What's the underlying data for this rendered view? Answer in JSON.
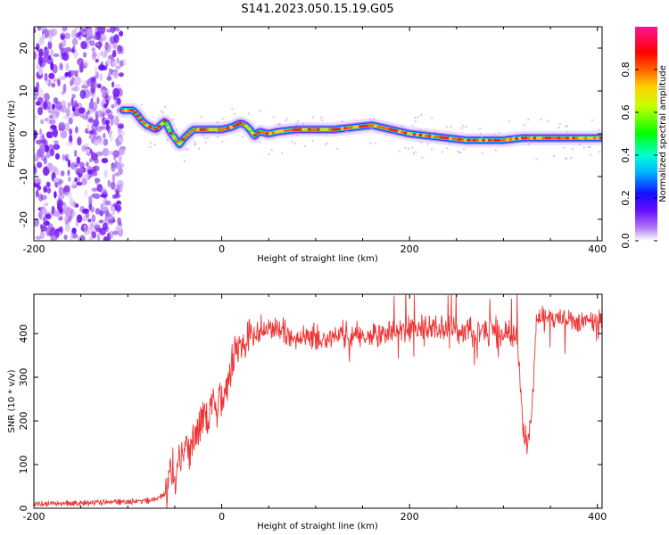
{
  "figure": {
    "title": "S141.2023.050.15.19.G05"
  },
  "chart_data": [
    {
      "type": "heatmap",
      "xlabel": "Height of straight line (km)",
      "ylabel": "Frequency (Hz)",
      "xlim": [
        -200,
        405
      ],
      "ylim": [
        -25,
        25
      ],
      "x_ticks": [
        -200,
        0,
        200,
        400
      ],
      "x_tick_labels": [
        "-200",
        "0",
        "200",
        "400"
      ],
      "y_ticks": [
        -20,
        -10,
        0,
        10,
        20
      ],
      "y_tick_labels": [
        "-20",
        "-10",
        "0",
        "10",
        "20"
      ],
      "noise_region_x": [
        -200,
        -105
      ],
      "ridge": {
        "x": [
          -105,
          -95,
          -90,
          -85,
          -80,
          -75,
          -70,
          -65,
          -60,
          -55,
          -50,
          -45,
          -40,
          -35,
          -30,
          -20,
          -10,
          0,
          10,
          20,
          25,
          30,
          35,
          40,
          50,
          60,
          80,
          100,
          120,
          140,
          160,
          180,
          200,
          220,
          240,
          260,
          280,
          300,
          320,
          340,
          360,
          380,
          405
        ],
        "y": [
          5.5,
          5.5,
          4.5,
          3.0,
          2.0,
          1.5,
          1.0,
          2.0,
          3.0,
          0.5,
          -1.0,
          -2.5,
          -1.0,
          0.0,
          1.0,
          1.0,
          1.0,
          1.0,
          1.5,
          2.5,
          2.0,
          1.0,
          -0.5,
          0.5,
          0.0,
          0.5,
          1.0,
          1.0,
          1.0,
          1.5,
          2.0,
          1.0,
          0.0,
          -0.5,
          -1.0,
          -1.5,
          -1.5,
          -1.5,
          -1.0,
          -1.0,
          -1.0,
          -1.0,
          -1.0
        ]
      },
      "grid": false
    },
    {
      "type": "line",
      "xlabel": "Height of straight line (km)",
      "ylabel": "SNR (10 * v/v)",
      "xlim": [
        -200,
        405
      ],
      "ylim": [
        0,
        490
      ],
      "x_ticks": [
        -200,
        0,
        200,
        400
      ],
      "x_tick_labels": [
        "-200",
        "0",
        "200",
        "400"
      ],
      "y_ticks": [
        0,
        100,
        200,
        300,
        400
      ],
      "y_tick_labels": [
        "0",
        "100",
        "200",
        "300",
        "400"
      ],
      "series": [
        {
          "color": "#ee3333",
          "x": [
            -200,
            -150,
            -100,
            -75,
            -65,
            -58,
            -55,
            -50,
            -45,
            -40,
            -35,
            -30,
            -25,
            -20,
            -15,
            -10,
            -5,
            0,
            5,
            10,
            15,
            20,
            25,
            30,
            35,
            40,
            50,
            60,
            80,
            100,
            150,
            200,
            250,
            300,
            315,
            320,
            322,
            325,
            328,
            331,
            335,
            340,
            360,
            380,
            405
          ],
          "y": [
            10,
            12,
            15,
            18,
            25,
            40,
            110,
            70,
            120,
            140,
            130,
            165,
            170,
            210,
            200,
            230,
            225,
            250,
            280,
            330,
            360,
            375,
            385,
            395,
            400,
            405,
            410,
            405,
            395,
            390,
            395,
            410,
            410,
            400,
            395,
            210,
            175,
            150,
            175,
            250,
            435,
            440,
            435,
            430,
            430
          ]
        }
      ],
      "grid": false
    }
  ],
  "colorbar": {
    "label": "Normalized spectral amplitude",
    "ticks": [
      0.0,
      0.2,
      0.4,
      0.6,
      0.8
    ],
    "tick_labels": [
      "0.0",
      "0.2",
      "0.4",
      "0.6",
      "0.8"
    ],
    "colors": [
      "#ffffff",
      "#8a2be2",
      "#0000ff",
      "#00e5ff",
      "#00ff00",
      "#ffff00",
      "#ff8c00",
      "#ff0000",
      "#ff1493"
    ]
  }
}
